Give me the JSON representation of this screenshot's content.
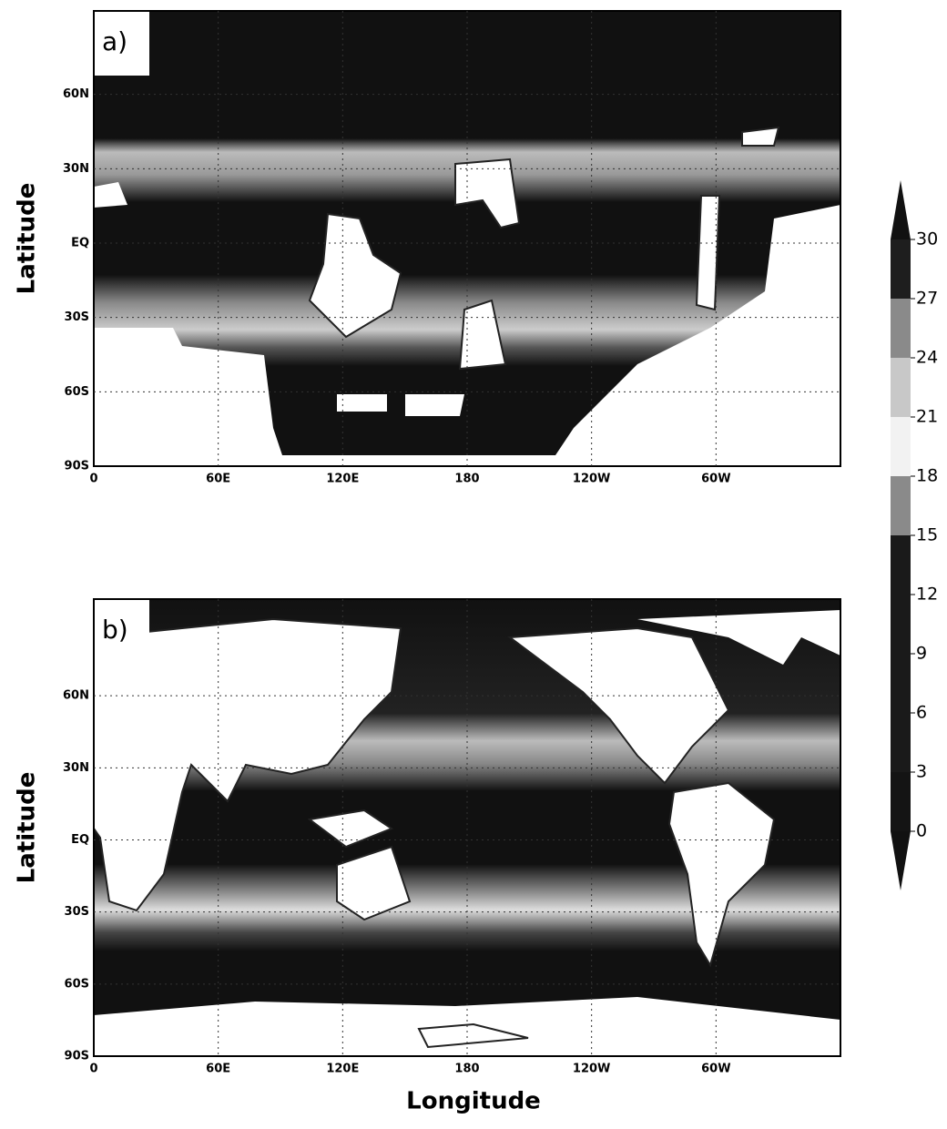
{
  "panels": [
    {
      "label": "a)",
      "y_axis_label": "Latitude",
      "yticks": [
        "60N",
        "30N",
        "EQ",
        "30S",
        "60S",
        "90S"
      ],
      "xticks": [
        "0",
        "60E",
        "120E",
        "180",
        "120W",
        "60W"
      ]
    },
    {
      "label": "b)",
      "y_axis_label": "Latitude",
      "yticks": [
        "60N",
        "30N",
        "EQ",
        "30S",
        "60S",
        "90S"
      ],
      "xticks": [
        "0",
        "60E",
        "120E",
        "180",
        "120W",
        "60W"
      ]
    }
  ],
  "x_axis_label": "Longitude",
  "colorbar": {
    "ticks": [
      0,
      3,
      6,
      9,
      12,
      15,
      18,
      21,
      24,
      27,
      30
    ],
    "colors": [
      "#141414",
      "#1a1a1a",
      "#1a1a1a",
      "#1a1a1a",
      "#1a1a1a",
      "#8a8a8a",
      "#f2f2f2",
      "#c8c8c8",
      "#8a8a8a",
      "#1e1e1e"
    ]
  }
}
